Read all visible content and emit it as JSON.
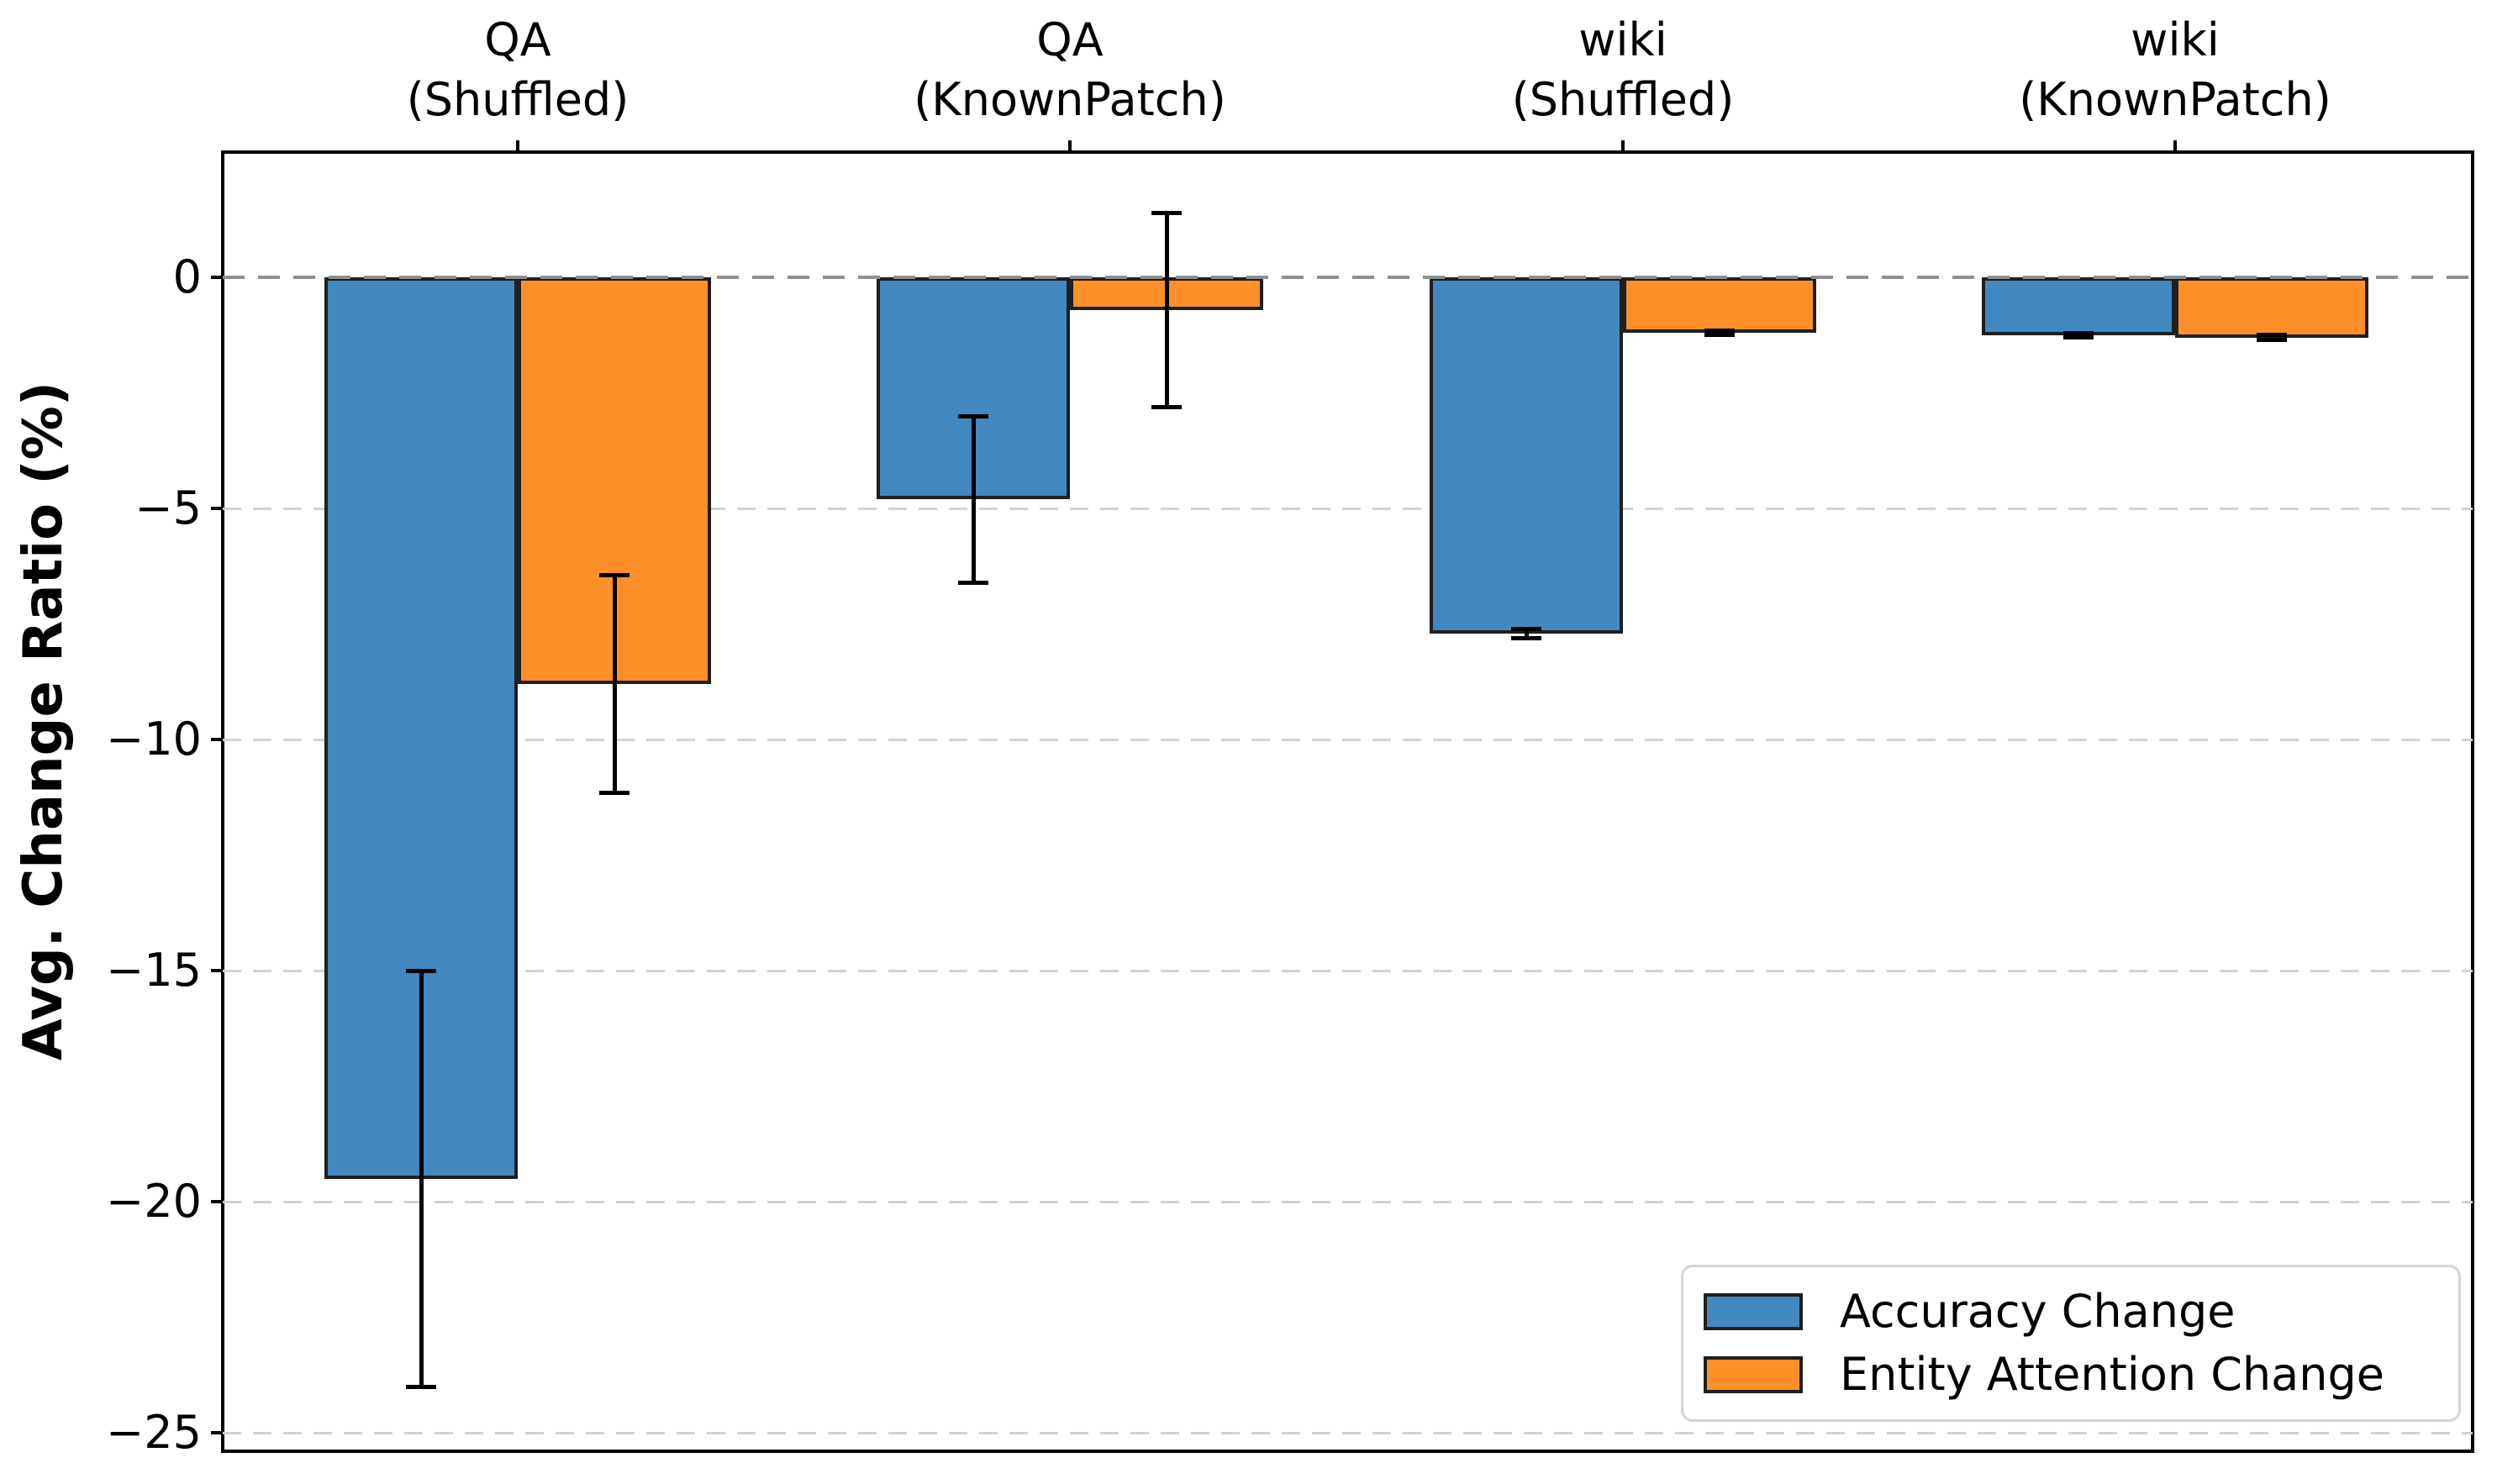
{
  "chart_data": {
    "type": "bar",
    "title": "",
    "ylabel": "Avg. Change Ratio (%)",
    "categories": [
      "QA (Shuffled)",
      "QA (KnownPatch)",
      "wiki (Shuffled)",
      "wiki (KnownPatch)"
    ],
    "category_lines": [
      [
        "QA",
        "(Shuffled)"
      ],
      [
        "QA",
        "(KnownPatch)"
      ],
      [
        "wiki",
        "(Shuffled)"
      ],
      [
        "wiki",
        "(KnownPatch)"
      ]
    ],
    "series": [
      {
        "name": "Accuracy Change",
        "color": "#4189c0",
        "values": [
          -19.5,
          -4.8,
          -7.7,
          -1.25
        ],
        "errors": [
          4.5,
          1.8,
          0.1,
          0.05
        ]
      },
      {
        "name": "Entity Attention Change",
        "color": "#ff9029",
        "values": [
          -8.8,
          -0.7,
          -1.2,
          -1.3
        ],
        "errors": [
          2.35,
          2.1,
          0.05,
          0.05
        ]
      }
    ],
    "yticks": [
      0,
      -5,
      -10,
      -15,
      -20,
      -25
    ],
    "ytick_labels": [
      "0",
      "−5",
      "−10",
      "−15",
      "−20",
      "−25"
    ],
    "ylim": [
      2.7,
      -25.4
    ],
    "grid": {
      "axis": "y",
      "style": "dashed",
      "color": "#d2d2d2"
    },
    "zero_line": {
      "value": 0,
      "style": "dashed",
      "color": "#8f8f8f"
    },
    "legend_position": "lower right",
    "bar_edge_color": "#1f1f1f",
    "error_bar_color": "#000000"
  }
}
